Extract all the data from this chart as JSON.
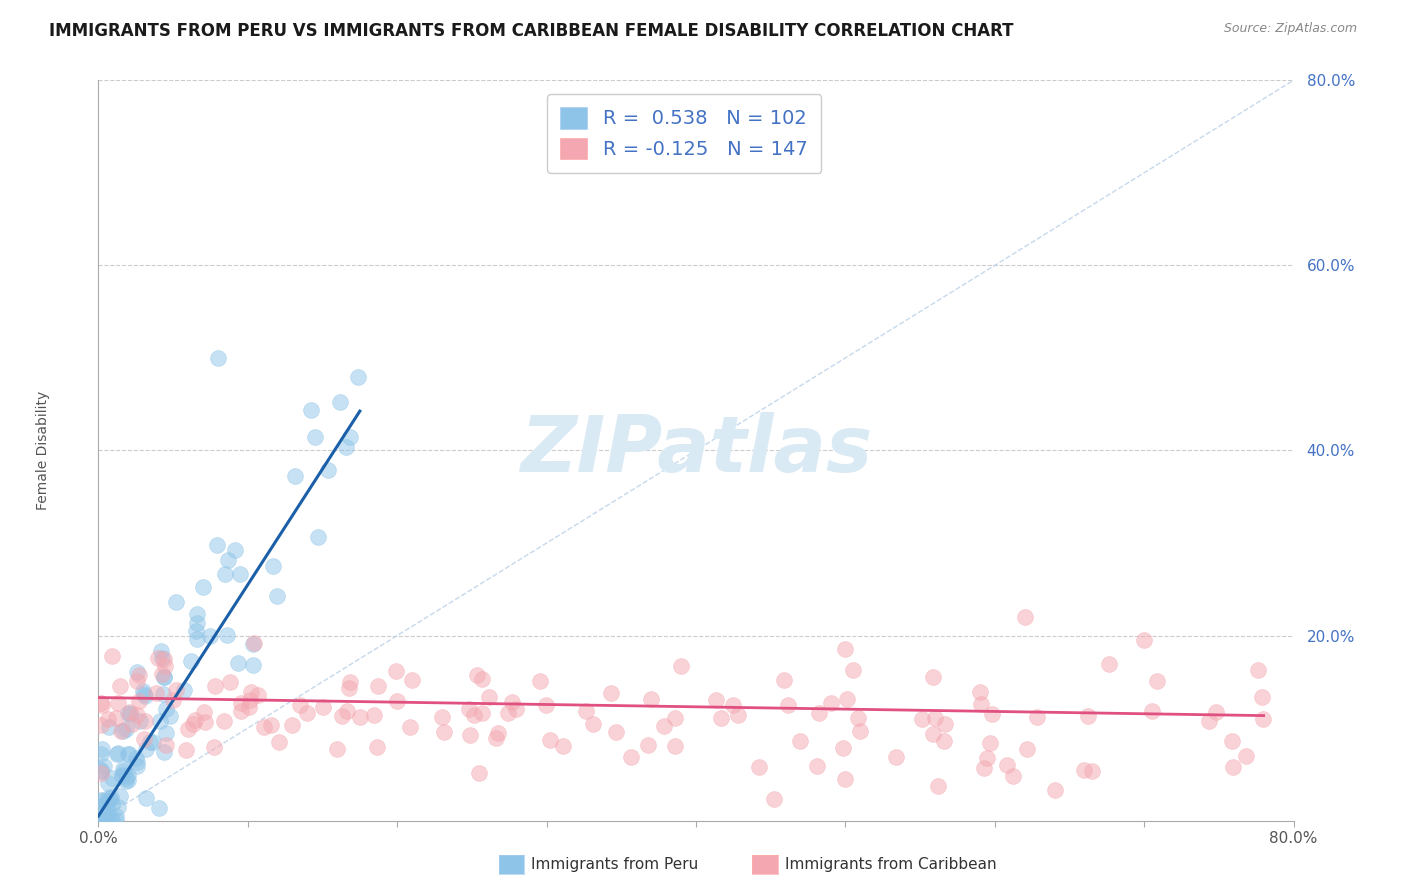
{
  "title": "IMMIGRANTS FROM PERU VS IMMIGRANTS FROM CARIBBEAN FEMALE DISABILITY CORRELATION CHART",
  "source": "Source: ZipAtlas.com",
  "ylabel": "Female Disability",
  "legend_label_1": "Immigrants from Peru",
  "legend_label_2": "Immigrants from Caribbean",
  "r1": 0.538,
  "n1": 102,
  "r2": -0.125,
  "n2": 147,
  "xlim": [
    0.0,
    0.8
  ],
  "ylim": [
    0.0,
    0.8
  ],
  "xticks": [
    0.0,
    0.1,
    0.2,
    0.3,
    0.4,
    0.5,
    0.6,
    0.7,
    0.8
  ],
  "yticks": [
    0.0,
    0.2,
    0.4,
    0.6,
    0.8
  ],
  "color_peru": "#8ec4e8",
  "color_caribbean": "#f4a7b0",
  "trend_color_peru": "#1a5fa8",
  "trend_color_caribbean": "#e05080",
  "background_color": "#ffffff",
  "grid_color": "#cccccc",
  "watermark": "ZIPatlas",
  "watermark_color": "#daeaf5",
  "title_fontsize": 12,
  "seed": 99
}
